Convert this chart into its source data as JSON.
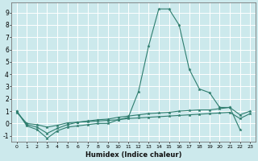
{
  "xlabel": "Humidex (Indice chaleur)",
  "x": [
    0,
    1,
    2,
    3,
    4,
    5,
    6,
    7,
    8,
    9,
    10,
    11,
    12,
    13,
    14,
    15,
    16,
    17,
    18,
    19,
    20,
    21,
    22,
    23
  ],
  "line_peak": [
    1.0,
    -0.2,
    -0.5,
    -1.2,
    -0.6,
    -0.3,
    -0.2,
    -0.1,
    0.0,
    0.0,
    0.3,
    0.5,
    2.6,
    6.3,
    9.3,
    9.3,
    8.0,
    4.4,
    2.8,
    2.5,
    1.3,
    1.3,
    -0.5,
    null
  ],
  "line_upper": [
    1.0,
    -0.1,
    -0.3,
    -0.8,
    -0.4,
    -0.1,
    0.1,
    0.2,
    0.3,
    0.35,
    0.5,
    0.6,
    0.7,
    0.8,
    0.85,
    0.9,
    1.0,
    1.05,
    1.1,
    1.1,
    1.2,
    1.3,
    0.7,
    1.0
  ],
  "line_lower": [
    0.9,
    0.0,
    -0.1,
    -0.3,
    -0.15,
    0.05,
    0.1,
    0.15,
    0.2,
    0.25,
    0.3,
    0.4,
    0.45,
    0.5,
    0.55,
    0.6,
    0.65,
    0.7,
    0.75,
    0.8,
    0.85,
    0.9,
    0.4,
    0.8
  ],
  "ylim": [
    -1.5,
    9.8
  ],
  "xlim": [
    -0.5,
    23.5
  ],
  "yticks": [
    -1,
    0,
    1,
    2,
    3,
    4,
    5,
    6,
    7,
    8,
    9
  ],
  "xticks": [
    0,
    1,
    2,
    3,
    4,
    5,
    6,
    7,
    8,
    9,
    10,
    11,
    12,
    13,
    14,
    15,
    16,
    17,
    18,
    19,
    20,
    21,
    22,
    23
  ],
  "line_color": "#2e7d6e",
  "bg_color": "#cce9ec",
  "grid_color": "#ffffff",
  "marker": "*",
  "marker_size": 2.5,
  "lw": 0.8
}
